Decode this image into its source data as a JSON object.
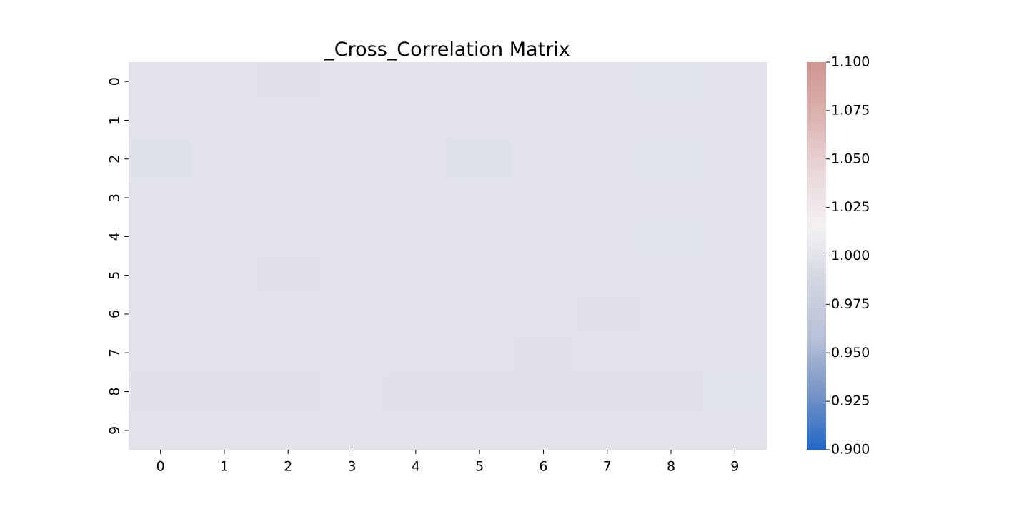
{
  "chart_data": {
    "type": "heatmap",
    "title": "_Cross_Correlation Matrix",
    "xlabel": "",
    "ylabel": "",
    "x_categories": [
      "0",
      "1",
      "2",
      "3",
      "4",
      "5",
      "6",
      "7",
      "8",
      "9"
    ],
    "y_categories": [
      "0",
      "1",
      "2",
      "3",
      "4",
      "5",
      "6",
      "7",
      "8",
      "9"
    ],
    "values": [
      [
        1.0,
        1.0,
        0.999,
        1.0,
        1.0,
        1.0,
        1.0,
        1.0,
        0.9995,
        1.0
      ],
      [
        1.0,
        1.0,
        1.0,
        1.0,
        1.0,
        1.0,
        1.0,
        1.0,
        1.0,
        1.0
      ],
      [
        0.998,
        1.0,
        1.0,
        1.0,
        1.0,
        0.998,
        1.0,
        1.0,
        0.9995,
        1.0
      ],
      [
        1.0,
        1.0,
        1.0,
        1.0,
        1.0,
        1.0,
        1.0,
        1.0,
        1.0,
        1.0
      ],
      [
        1.0,
        1.0,
        1.0,
        1.0,
        1.0,
        1.0,
        1.0,
        1.0,
        0.9995,
        1.0
      ],
      [
        1.0,
        1.0,
        0.999,
        1.0,
        1.0,
        1.0,
        1.0,
        1.0,
        1.0,
        1.0
      ],
      [
        1.0,
        1.0,
        1.0,
        1.0,
        1.0,
        1.0,
        1.0,
        0.999,
        1.0,
        1.0
      ],
      [
        1.0,
        1.0,
        1.0,
        1.0,
        1.0,
        1.0,
        0.999,
        1.0,
        1.0,
        1.0
      ],
      [
        0.999,
        0.999,
        0.999,
        1.0,
        0.999,
        0.999,
        0.999,
        0.999,
        0.999,
        0.9995
      ],
      [
        1.0,
        1.0,
        1.0,
        1.0,
        1.0,
        1.0,
        1.0,
        1.0,
        1.0,
        1.0
      ]
    ],
    "colorbar": {
      "vmin": 0.9,
      "vmax": 1.1,
      "ticks": [
        "0.900",
        "0.925",
        "0.950",
        "0.975",
        "1.000",
        "1.025",
        "1.050",
        "1.075",
        "1.100"
      ],
      "colors": [
        "#2166c6",
        "#7694c6",
        "#b6c1d6",
        "#d0d5e1",
        "#f4f1f3",
        "#ead8d9",
        "#dcb4b1",
        "#cf9591"
      ]
    },
    "grid": false,
    "legend": "colorbar-right"
  }
}
